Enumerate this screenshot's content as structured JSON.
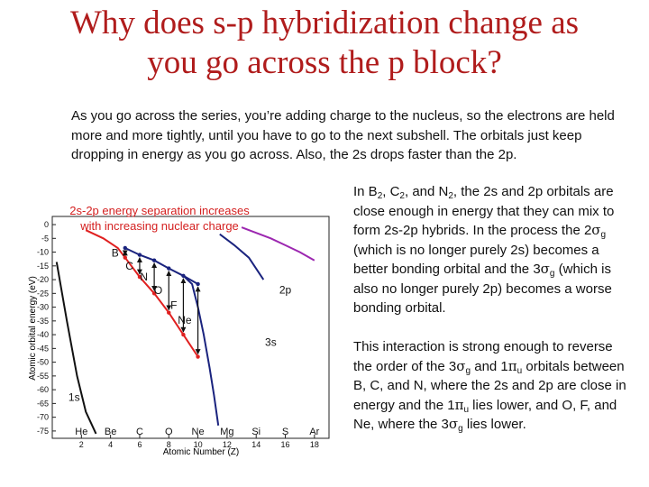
{
  "slide": {
    "title_line1": "Why does s-p hybridization change as",
    "title_line2": "you go across the p block?",
    "intro": "As you go across the series, you’re adding charge to the nucleus, so the electrons are held more and more tightly, until you have to go to the next subshell.  The orbitals just keep dropping in energy as you go across.  Also, the 2s drops faster than the 2p."
  },
  "para1": {
    "t1": "In B",
    "s1": "2",
    "t2": ", C",
    "s2": "2",
    "t3": ", and N",
    "s3": "2",
    "t4": ", the 2s and 2p orbitals are close enough in energy that they can mix to form 2s-2p hybrids.  In the process the 2",
    "sym1": "σ",
    "s4": "g",
    "t5": " (which is no longer purely 2s) becomes a better bonding orbital and the 3",
    "sym2": "σ",
    "s5": "g",
    "t6": " (which is also no longer purely 2p) becomes a worse bonding orbital."
  },
  "para2": {
    "t1": "This interaction is strong enough to reverse the order of the 3",
    "sym1": "σ",
    "s1": "g",
    "t2": " and 1",
    "sym2": "π",
    "s2": "u",
    "t3": " orbitals between B, C, and N, where the 2s and 2p are close in energy and the 1",
    "sym3": "π",
    "s3": "u",
    "t4": " lies lower, and O, F, and Ne, where the 3",
    "sym4": "σ",
    "s4": "g",
    "t5": " lies lower."
  },
  "chart_data": {
    "type": "line",
    "annotation_line1": "2s-2p energy separation increases",
    "annotation_line2": "with increasing nuclear charge",
    "annotation_color": "#d42020",
    "xlabel": "Atomic Number (Z)",
    "ylabel": "Atomic orbital energy (eV)",
    "xlim": [
      0,
      19
    ],
    "ylim": [
      -77,
      1
    ],
    "xticks": [
      "2",
      "4",
      "6",
      "8",
      "10",
      "12",
      "14",
      "16",
      "18"
    ],
    "yticks": [
      "0",
      "-5",
      "-10",
      "-15",
      "-20",
      "-25",
      "-30",
      "-35",
      "-40",
      "-45",
      "-50",
      "-55",
      "-60",
      "-65",
      "-70",
      "-75"
    ],
    "elements": [
      {
        "label": "He",
        "z": 2
      },
      {
        "label": "Be",
        "z": 4
      },
      {
        "label": "C",
        "z": 6
      },
      {
        "label": "O",
        "z": 8
      },
      {
        "label": "Ne",
        "z": 10
      },
      {
        "label": "Mg",
        "z": 12
      },
      {
        "label": "Si",
        "z": 14
      },
      {
        "label": "S",
        "z": 16
      },
      {
        "label": "Ar",
        "z": 18
      }
    ],
    "series": [
      {
        "name": "1s",
        "color": "#111111",
        "x": [
          0.3,
          1,
          1.7,
          2.3,
          3.0
        ],
        "y": [
          -13.6,
          -35,
          -55,
          -68,
          -76
        ]
      },
      {
        "name": "2s",
        "color": "#e02020",
        "x": [
          2.3,
          3.5,
          4.5,
          5,
          6,
          7,
          8,
          9,
          10
        ],
        "y": [
          -2,
          -5,
          -8.5,
          -12,
          -19,
          -25,
          -32,
          -40,
          -48
        ]
      },
      {
        "name": "2p",
        "color": "#1a237e",
        "x": [
          5,
          6,
          7,
          8,
          9,
          10
        ],
        "y": [
          -8.5,
          -11,
          -13,
          -15.9,
          -18.6,
          -21.6
        ]
      },
      {
        "name": "2p-Ne",
        "color": "#1a237e",
        "x": [
          9.0,
          9.6,
          10.0,
          10.4,
          10.8,
          11.1,
          11.4
        ],
        "y": [
          -18.6,
          -21.6,
          -30,
          -40,
          -52,
          -62,
          -73
        ]
      },
      {
        "name": "3s",
        "color": "#1a237e",
        "x": [
          11.5,
          12.5,
          13.5,
          14.5
        ],
        "y": [
          -3.5,
          -7.5,
          -12,
          -20
        ]
      },
      {
        "name": "3p",
        "color": "#9c27b0",
        "x": [
          13,
          14,
          15,
          16,
          17,
          18
        ],
        "y": [
          -1,
          -3,
          -5,
          -7.5,
          -10,
          -13
        ]
      }
    ],
    "arrow_labels": [
      {
        "label": "B",
        "z": 5
      },
      {
        "label": "C",
        "z": 6
      },
      {
        "label": "N",
        "z": 7
      },
      {
        "label": "O",
        "z": 8
      },
      {
        "label": "F",
        "z": 9
      },
      {
        "label": "Ne",
        "z": 10
      }
    ],
    "arrows": [
      {
        "z": 5,
        "top": -8.5,
        "bottom": -12
      },
      {
        "z": 6,
        "top": -11,
        "bottom": -19
      },
      {
        "z": 7,
        "top": -13,
        "bottom": -25
      },
      {
        "z": 8,
        "top": -15.9,
        "bottom": -32
      },
      {
        "z": 9,
        "top": -18.6,
        "bottom": -40
      },
      {
        "z": 10,
        "top": -21.6,
        "bottom": -48
      }
    ],
    "curve_labels": [
      {
        "label": "1s",
        "x": 1.5,
        "y": -64
      },
      {
        "label": "2p",
        "x": 16,
        "y": -25
      },
      {
        "label": "3s",
        "x": 15,
        "y": -44
      }
    ]
  }
}
